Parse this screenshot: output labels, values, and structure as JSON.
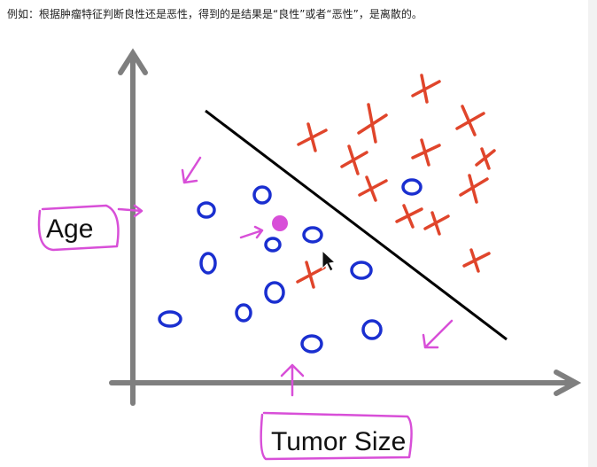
{
  "caption": "例如：根据肿瘤特征判断良性还是恶性，得到的是结果是“良性”或者“恶性”，是离散的。",
  "y_axis_label": "Age",
  "x_axis_label": "Tumor Size"
}
